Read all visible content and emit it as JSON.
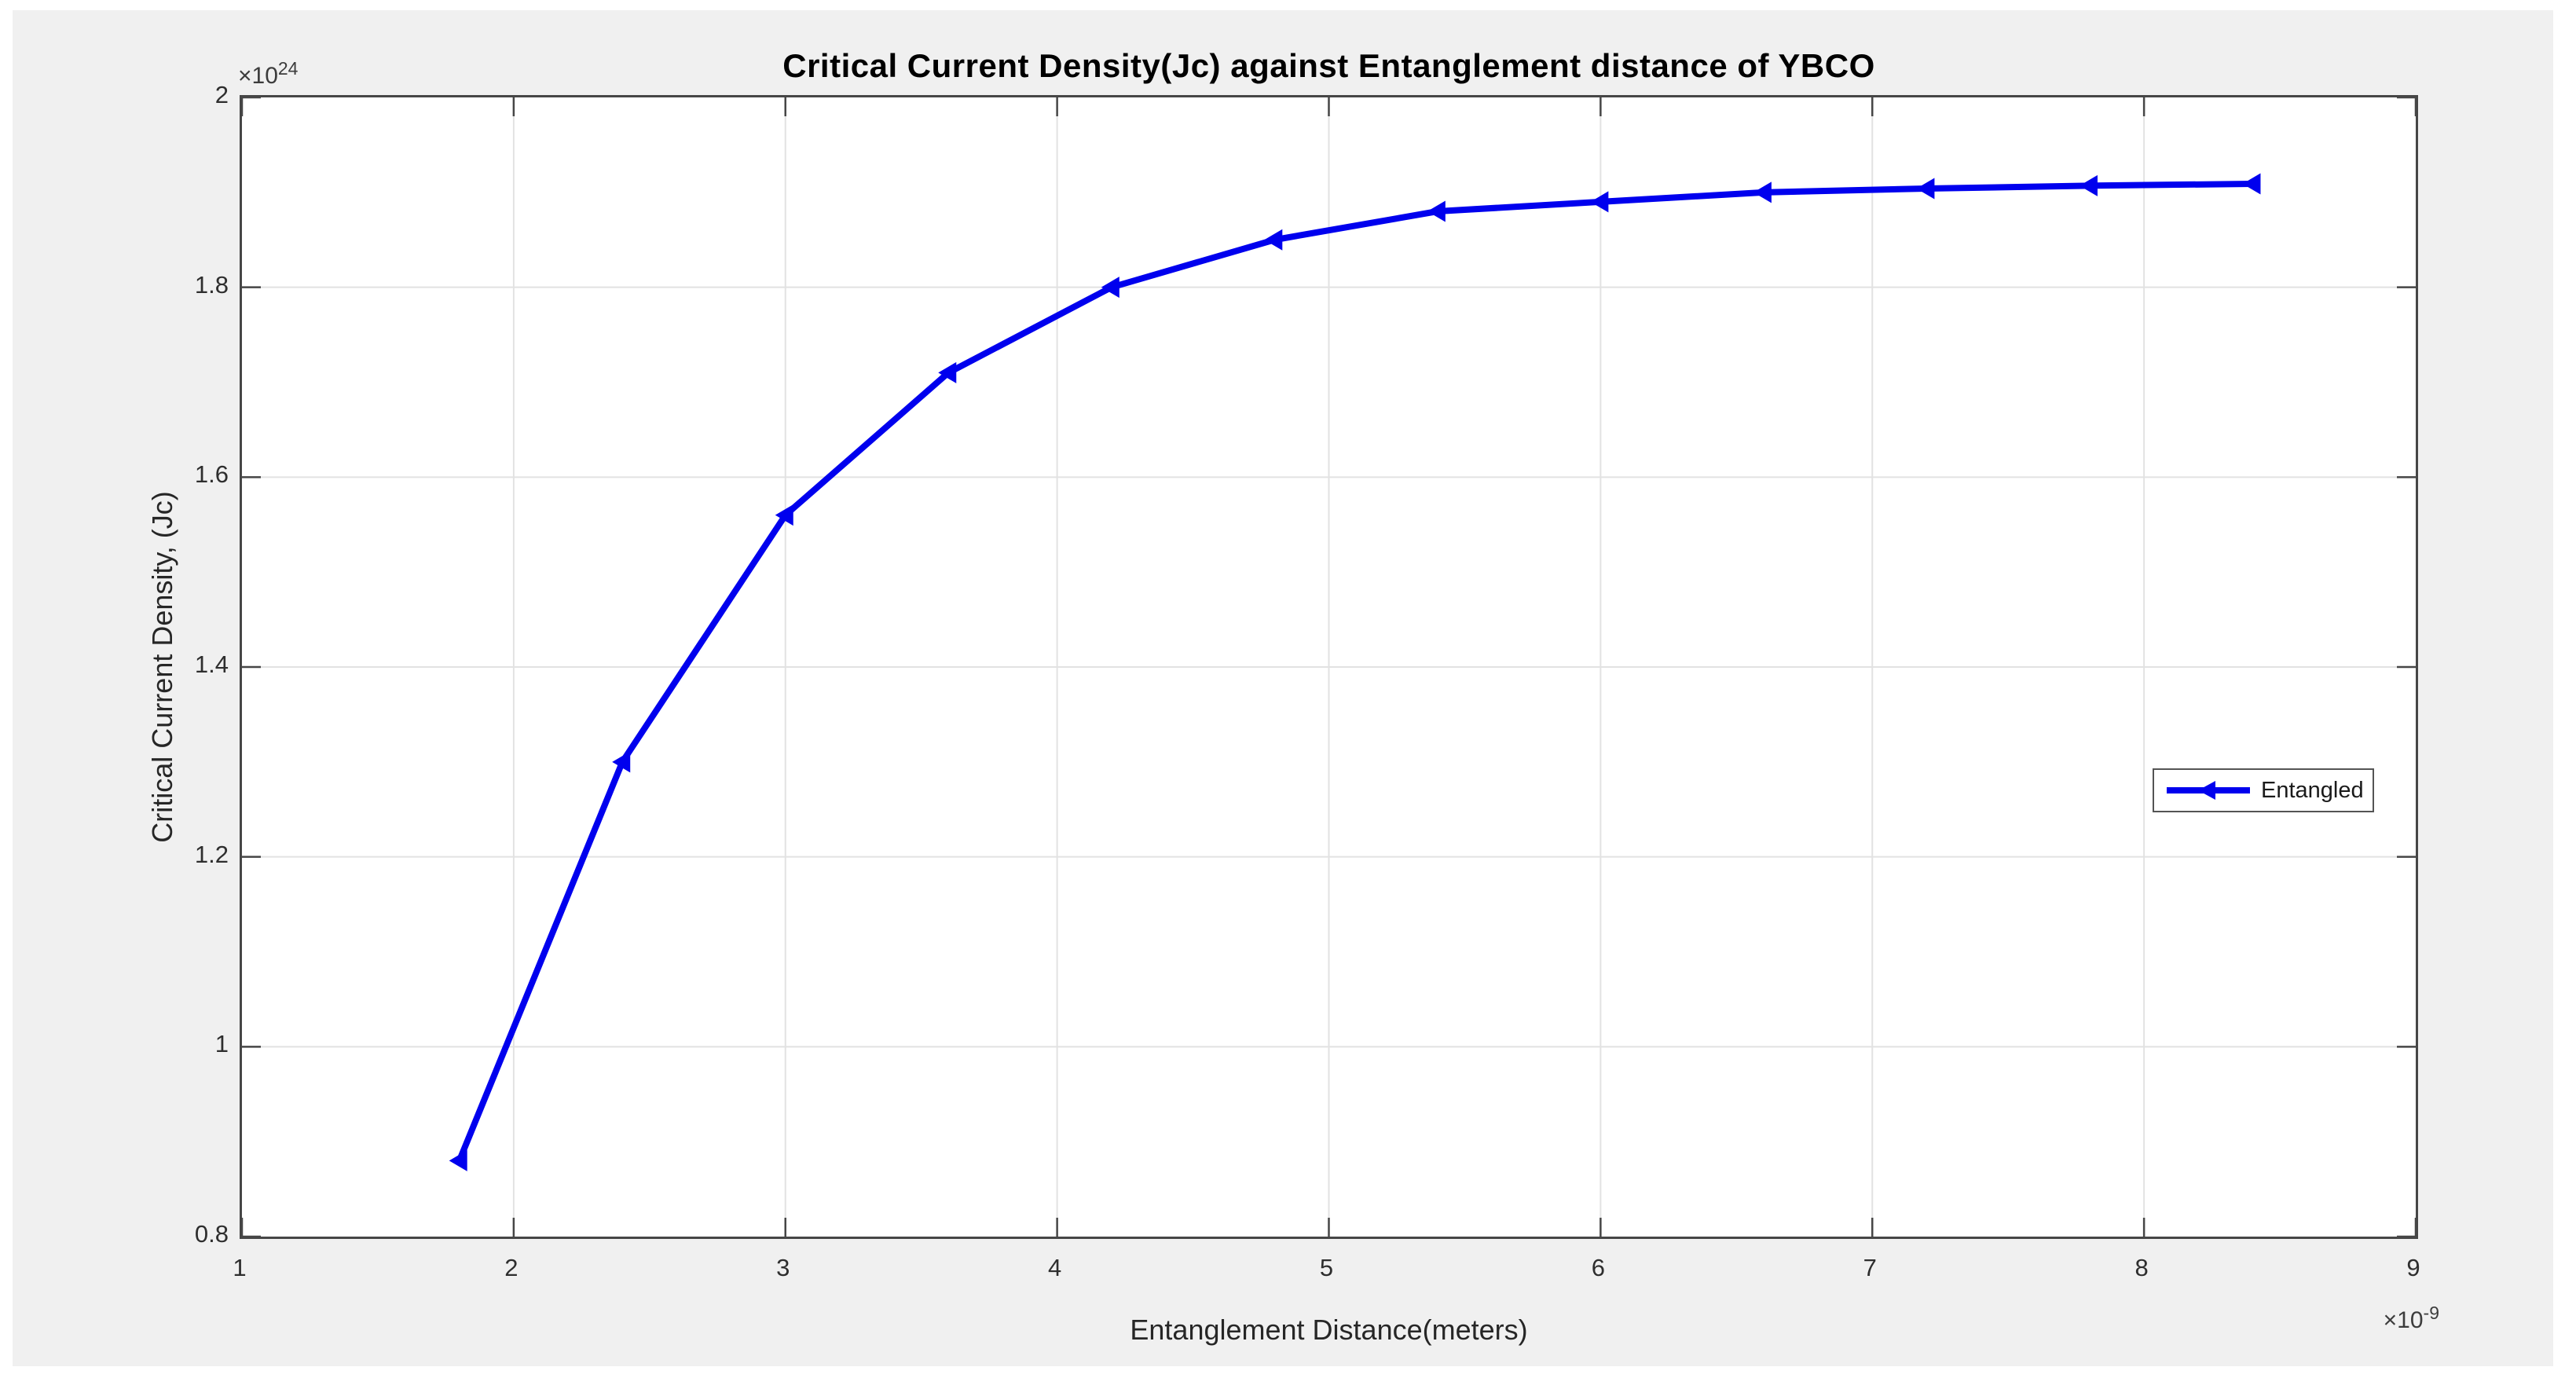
{
  "figure": {
    "page_background": "#ffffff",
    "figure_background": "#f0f0f0",
    "plot_background": "#ffffff",
    "axis_color": "#464646",
    "grid_color": "#e2e2e2",
    "text_color": "#262626"
  },
  "chart_data": {
    "type": "line",
    "title": "Critical Current Density(Jc) against Entanglement distance of YBCO",
    "xlabel": "Entanglement Distance(meters)",
    "ylabel": "Critical Current Density, (Jc)",
    "x_offset": {
      "base": "×10",
      "exp": "-9"
    },
    "y_offset": {
      "base": "×10",
      "exp": "24"
    },
    "xlim": [
      1,
      9
    ],
    "ylim": [
      0.8,
      2.0
    ],
    "x_ticks": [
      1,
      2,
      3,
      4,
      5,
      6,
      7,
      8,
      9
    ],
    "x_tick_labels": [
      "1",
      "2",
      "3",
      "4",
      "5",
      "6",
      "7",
      "8",
      "9"
    ],
    "y_ticks": [
      0.8,
      1.0,
      1.2,
      1.4,
      1.6,
      1.8,
      2.0
    ],
    "y_tick_labels": [
      "0.8",
      "1",
      "1.2",
      "1.4",
      "1.6",
      "1.8",
      "2"
    ],
    "grid": true,
    "tick_direction": "in",
    "box": true,
    "legend": {
      "position": "right-middle",
      "entries": [
        {
          "label": "Entangled",
          "color": "#0000ee",
          "marker": "left-triangle",
          "line_style": "solid"
        }
      ]
    },
    "series": [
      {
        "name": "Entangled",
        "color": "#0000ee",
        "marker": "left-triangle",
        "line_width": 8,
        "x": [
          1.8,
          2.4,
          3.0,
          3.6,
          4.2,
          4.8,
          5.4,
          6.0,
          6.6,
          7.2,
          7.8,
          8.4
        ],
        "y": [
          0.88,
          1.3,
          1.56,
          1.71,
          1.8,
          1.85,
          1.88,
          1.89,
          1.9,
          1.904,
          1.907,
          1.909
        ]
      }
    ]
  }
}
